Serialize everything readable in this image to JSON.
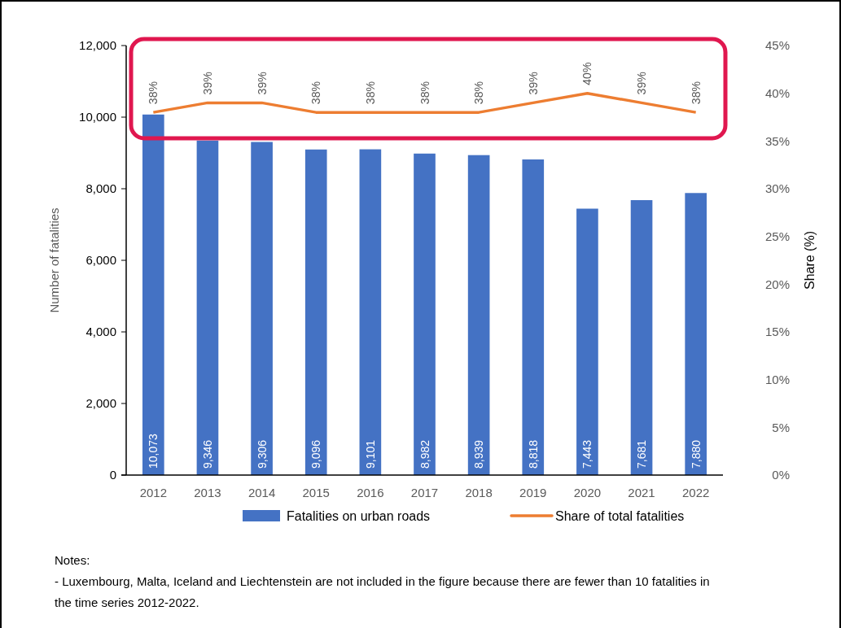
{
  "chart_data": {
    "type": "bar",
    "ylabel": "Number of fatalities",
    "y2label": "Share (%)",
    "categories": [
      "2012",
      "2013",
      "2014",
      "2015",
      "2016",
      "2017",
      "2018",
      "2019",
      "2020",
      "2021",
      "2022"
    ],
    "series": [
      {
        "name": "Fatalities on urban roads",
        "color": "#4472c4",
        "values": [
          10073,
          9346,
          9306,
          9096,
          9101,
          8982,
          8939,
          8818,
          7443,
          7681,
          7880
        ],
        "value_labels": [
          "10,073",
          "9,346",
          "9,306",
          "9,096",
          "9,101",
          "8,982",
          "8,939",
          "8,818",
          "7,443",
          "7,681",
          "7,880"
        ]
      },
      {
        "name": "Share of total fatalities",
        "type": "line",
        "axis": "y2",
        "color": "#ed7d31",
        "values": [
          38,
          39,
          39,
          38,
          38,
          38,
          38,
          39,
          40,
          39,
          38
        ],
        "value_labels": [
          "38%",
          "39%",
          "39%",
          "38%",
          "38%",
          "38%",
          "38%",
          "39%",
          "40%",
          "39%",
          "38%"
        ]
      }
    ],
    "ylim": [
      0,
      12000
    ],
    "yticks": [
      0,
      {
        "value": 2000,
        "label": "2,000"
      },
      {
        "value": 4000,
        "label": "4,000"
      },
      {
        "value": 6000,
        "label": "6,000"
      },
      {
        "value": 8000,
        "label": "8,000"
      },
      {
        "value": 10000,
        "label": "10,000"
      },
      {
        "value": 12000,
        "label": "12,000"
      }
    ],
    "y2lim": [
      0,
      45
    ],
    "y2ticks": [
      {
        "value": 0,
        "label": "0%"
      },
      {
        "value": 5,
        "label": "5%"
      },
      {
        "value": 10,
        "label": "10%"
      },
      {
        "value": 15,
        "label": "15%"
      },
      {
        "value": 20,
        "label": "20%"
      },
      {
        "value": 25,
        "label": "25%"
      },
      {
        "value": 30,
        "label": "30%"
      },
      {
        "value": 35,
        "label": "35%"
      },
      {
        "value": 40,
        "label": "40%"
      },
      {
        "value": 45,
        "label": "45%"
      }
    ],
    "legend": "bottom",
    "grid": false,
    "marker": "none",
    "annotations": [
      "Notes:",
      "- Luxembourg, Malta, Iceland and Liechtenstein are not included in the figure because there are fewer than 10 fatalities in the time series 2012-2022."
    ]
  }
}
